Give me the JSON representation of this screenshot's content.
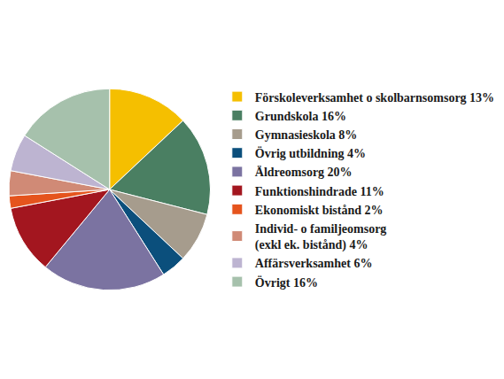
{
  "chart_data": {
    "type": "pie",
    "categories": [
      "Förskoleverksamhet o skolbarnsomsorg 13%",
      "Grundskola 16%",
      "Gymnasieskola 8%",
      "Övrig utbildning 4%",
      "Äldreomsorg 20%",
      "Funktionshindrade 11%",
      "Ekonomiskt bistånd 2%",
      "Individ- o familjeomsorg\n(exkl ek. bistånd) 4%",
      "Affärsverksamhet 6%",
      "Övrigt 16%"
    ],
    "values": [
      13,
      16,
      8,
      4,
      20,
      11,
      2,
      4,
      6,
      16
    ],
    "colors": [
      "#f5bf00",
      "#4a7f62",
      "#a69c8d",
      "#0b4f7c",
      "#7b73a1",
      "#a3161f",
      "#e5541d",
      "#d08a76",
      "#bdb4d1",
      "#a6c1ac"
    ],
    "legend": "right"
  }
}
